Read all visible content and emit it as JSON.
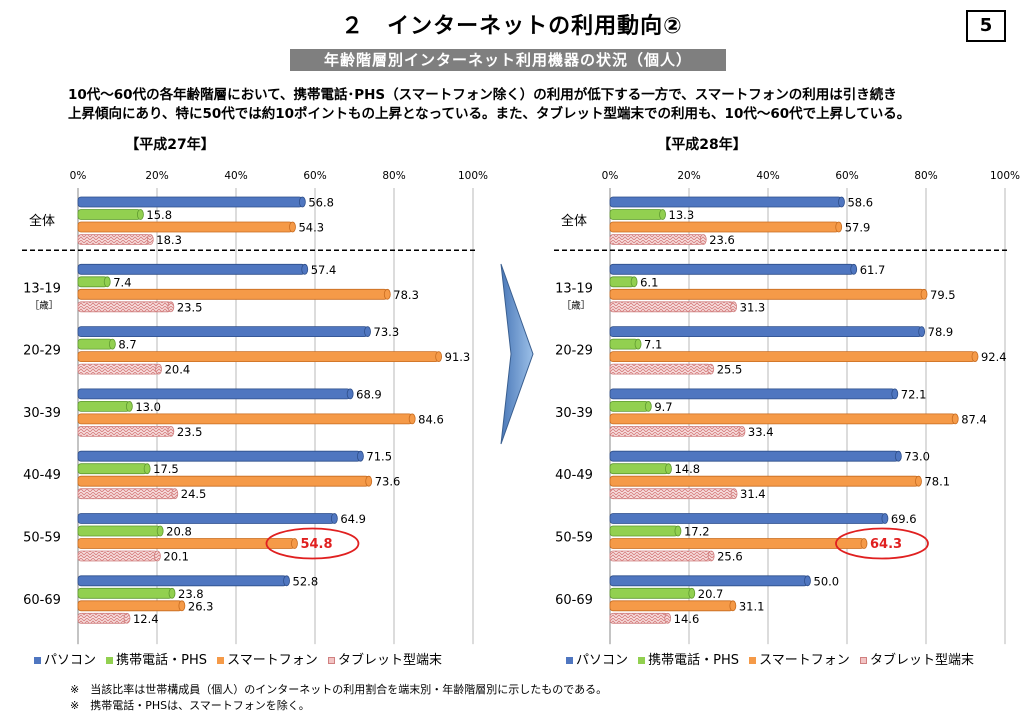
{
  "page": {
    "title": "２　インターネットの利用動向②",
    "page_number": "5",
    "subtitle": "年齢階層別インターネット利用機器の状況（個人）",
    "description": [
      "10代～60代の各年齢階層において、携帯電話･PHS（スマートフォン除く）の利用が低下する一方で、スマートフォンの利用は引き続き",
      "上昇傾向にあり、特に50代では約10ポイントもの上昇となっている。また、タブレット型端末での利用も、10代～60代で上昇している。"
    ],
    "notes": [
      "※　当該比率は世帯構成員（個人）のインターネットの利用割合を端末別・年齢階層別に示したものである。",
      "※　携帯電話・PHSは、スマートフォンを除く。"
    ],
    "age_unit": "［歳］"
  },
  "colors": {
    "pc": "#4f76c0",
    "mobile": "#92d050",
    "smartphone": "#f59a48",
    "tablet": "#f2c4c4",
    "highlight": "#e02020"
  },
  "legend": [
    {
      "label": "パソコン",
      "color": "#4f76c0"
    },
    {
      "label": "携帯電話・PHS",
      "color": "#92d050"
    },
    {
      "label": "スマートフォン",
      "color": "#f59a48"
    },
    {
      "label": "タブレット型端末",
      "color": "#f2c4c4"
    }
  ],
  "chart_data": [
    {
      "type": "bar",
      "orientation": "horizontal",
      "title": "【平成27年】",
      "xlim": [
        0,
        100
      ],
      "x_ticks": [
        "0%",
        "20%",
        "40%",
        "60%",
        "80%",
        "100%"
      ],
      "categories": [
        "全体",
        "13-19",
        "20-29",
        "30-39",
        "40-49",
        "50-59",
        "60-69"
      ],
      "series": [
        {
          "name": "パソコン",
          "values": [
            56.8,
            57.4,
            73.3,
            68.9,
            71.5,
            64.9,
            52.8
          ]
        },
        {
          "name": "携帯電話・PHS",
          "values": [
            15.8,
            7.4,
            8.7,
            13.0,
            17.5,
            20.8,
            23.8
          ]
        },
        {
          "name": "スマートフォン",
          "values": [
            54.3,
            78.3,
            91.3,
            84.6,
            73.6,
            54.8,
            26.3
          ]
        },
        {
          "name": "タブレット型端末",
          "values": [
            18.3,
            23.5,
            20.4,
            23.5,
            24.5,
            20.1,
            12.4
          ]
        }
      ],
      "highlight": {
        "category": "50-59",
        "series": "スマートフォン",
        "label": "54.8"
      }
    },
    {
      "type": "bar",
      "orientation": "horizontal",
      "title": "【平成28年】",
      "xlim": [
        0,
        100
      ],
      "x_ticks": [
        "0%",
        "20%",
        "40%",
        "60%",
        "80%",
        "100%"
      ],
      "categories": [
        "全体",
        "13-19",
        "20-29",
        "30-39",
        "40-49",
        "50-59",
        "60-69"
      ],
      "series": [
        {
          "name": "パソコン",
          "values": [
            58.6,
            61.7,
            78.9,
            72.1,
            73.0,
            69.6,
            50.0
          ]
        },
        {
          "name": "携帯電話・PHS",
          "values": [
            13.3,
            6.1,
            7.1,
            9.7,
            14.8,
            17.2,
            20.7
          ]
        },
        {
          "name": "スマートフォン",
          "values": [
            57.9,
            79.5,
            92.4,
            87.4,
            78.1,
            64.3,
            31.1
          ]
        },
        {
          "name": "タブレット型端末",
          "values": [
            23.6,
            31.3,
            25.5,
            33.4,
            31.4,
            25.6,
            14.6
          ]
        }
      ],
      "highlight": {
        "category": "50-59",
        "series": "スマートフォン",
        "label": "64.3"
      }
    }
  ]
}
